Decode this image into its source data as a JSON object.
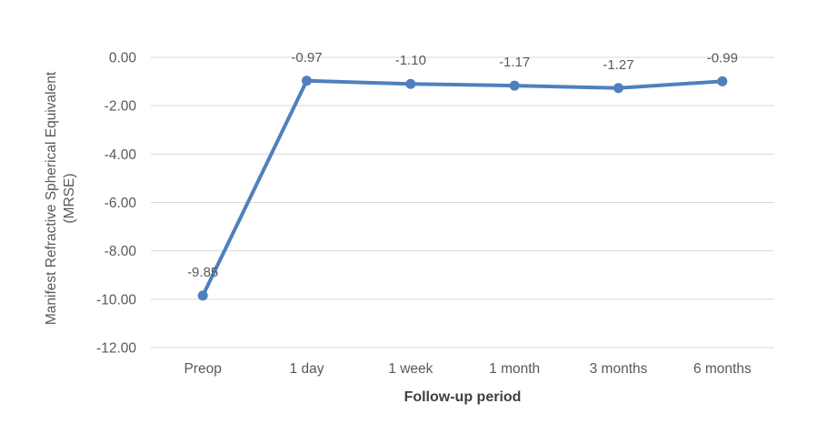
{
  "chart_data": {
    "type": "line",
    "title": "",
    "categories": [
      "Preop",
      "1 day",
      "1 week",
      "1 month",
      "3 months",
      "6 months"
    ],
    "series": [
      {
        "name": "MRSE",
        "values": [
          -9.85,
          -0.97,
          -1.1,
          -1.17,
          -1.27,
          -0.99
        ]
      }
    ],
    "data_labels": [
      "-9.85",
      "-0.97",
      "-1.10",
      "-1.17",
      "-1.27",
      "-0.99"
    ],
    "xlabel": "Follow-up period",
    "ylabel": "Manifest Refractive Spherical Equivalent (MRSE)",
    "ylabel_lines": [
      "Manifest Refractive Spherical Equivalent",
      "(MRSE)"
    ],
    "yticks": [
      "0.00",
      "-2.00",
      "-4.00",
      "-6.00",
      "-8.00",
      "-10.00",
      "-12.00"
    ],
    "ylim": [
      -12,
      0
    ],
    "grid": true,
    "legend_position": "none",
    "colors": {
      "line": "#4E80BD",
      "marker": "#4E80BD",
      "gridline": "#D9D9D9",
      "tick_text": "#595959",
      "data_label_text": "#595959",
      "axis_title_text": "#404040",
      "background": "#FFFFFF"
    }
  }
}
